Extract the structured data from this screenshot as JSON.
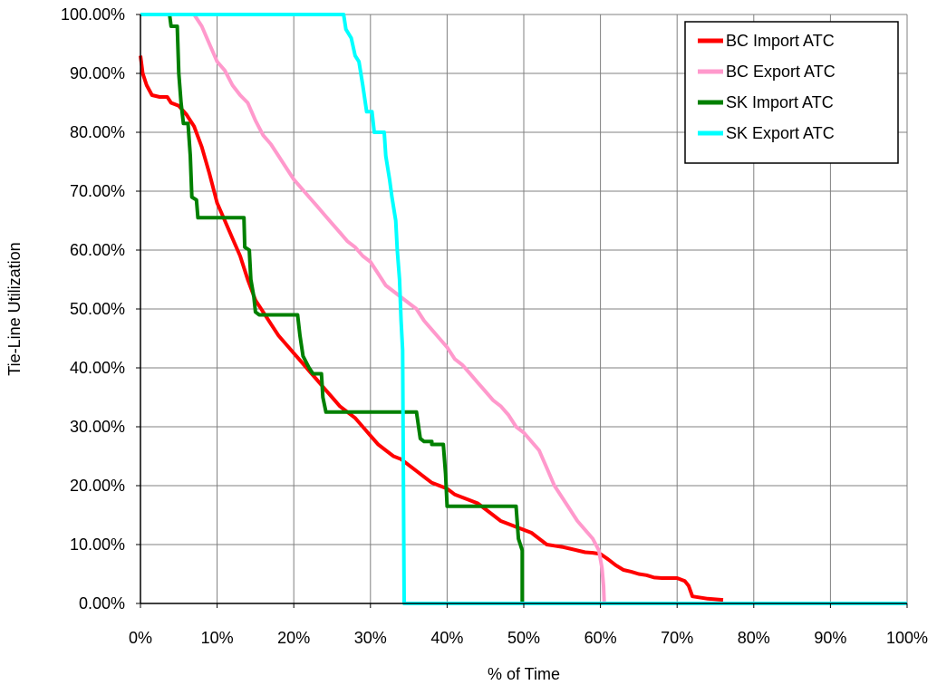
{
  "chart_data": {
    "type": "line",
    "xlabel": "% of Time",
    "ylabel": "Tie-Line Utilization",
    "xlim": [
      0,
      100
    ],
    "ylim": [
      0,
      100
    ],
    "grid": true,
    "legend_position": "top-right",
    "x_ticks": [
      0,
      10,
      20,
      30,
      40,
      50,
      60,
      70,
      80,
      90,
      100
    ],
    "x_tick_labels": [
      "0%",
      "10%",
      "20%",
      "30%",
      "40%",
      "50%",
      "60%",
      "70%",
      "80%",
      "90%",
      "100%"
    ],
    "y_ticks": [
      0,
      10,
      20,
      30,
      40,
      50,
      60,
      70,
      80,
      90,
      100
    ],
    "y_tick_labels": [
      "0.00%",
      "10.00%",
      "20.00%",
      "30.00%",
      "40.00%",
      "50.00%",
      "60.00%",
      "70.00%",
      "80.00%",
      "90.00%",
      "100.00%"
    ],
    "series": [
      {
        "name": "BC Import ATC",
        "color": "#ff0000",
        "points": [
          [
            0,
            93
          ],
          [
            0.3,
            90
          ],
          [
            0.8,
            88
          ],
          [
            1.5,
            86.3
          ],
          [
            2.5,
            86
          ],
          [
            3.5,
            86
          ],
          [
            4,
            85
          ],
          [
            5,
            84.5
          ],
          [
            6,
            83
          ],
          [
            7,
            81
          ],
          [
            8,
            77.5
          ],
          [
            9,
            73
          ],
          [
            10,
            68
          ],
          [
            11,
            65
          ],
          [
            12,
            62
          ],
          [
            13,
            59
          ],
          [
            14,
            55
          ],
          [
            15,
            51.5
          ],
          [
            16,
            49.5
          ],
          [
            17,
            47.5
          ],
          [
            18,
            45.5
          ],
          [
            19,
            44
          ],
          [
            20,
            42.5
          ],
          [
            21,
            41
          ],
          [
            22,
            39.5
          ],
          [
            23,
            38
          ],
          [
            24,
            36.5
          ],
          [
            25,
            35
          ],
          [
            26,
            33.5
          ],
          [
            27,
            32.5
          ],
          [
            28,
            31.5
          ],
          [
            29,
            30
          ],
          [
            30,
            28.5
          ],
          [
            31,
            27
          ],
          [
            32,
            26
          ],
          [
            33,
            25
          ],
          [
            34,
            24.5
          ],
          [
            35,
            23.5
          ],
          [
            36,
            22.5
          ],
          [
            37,
            21.5
          ],
          [
            38,
            20.5
          ],
          [
            39,
            20
          ],
          [
            40,
            19.5
          ],
          [
            41,
            18.5
          ],
          [
            42,
            18
          ],
          [
            43,
            17.5
          ],
          [
            44,
            17
          ],
          [
            45,
            16
          ],
          [
            46,
            15
          ],
          [
            47,
            14
          ],
          [
            48,
            13.5
          ],
          [
            49,
            13
          ],
          [
            50,
            12.5
          ],
          [
            51,
            12
          ],
          [
            52,
            11
          ],
          [
            53,
            10
          ],
          [
            54,
            9.8
          ],
          [
            55,
            9.6
          ],
          [
            56,
            9.3
          ],
          [
            57,
            9
          ],
          [
            58,
            8.7
          ],
          [
            59,
            8.6
          ],
          [
            60,
            8.4
          ],
          [
            61,
            7.5
          ],
          [
            62,
            6.5
          ],
          [
            63,
            5.7
          ],
          [
            64,
            5.4
          ],
          [
            65,
            5
          ],
          [
            66,
            4.8
          ],
          [
            67,
            4.4
          ],
          [
            68,
            4.3
          ],
          [
            70,
            4.3
          ],
          [
            71,
            3.8
          ],
          [
            71.5,
            3
          ],
          [
            72,
            1.2
          ],
          [
            74,
            0.8
          ],
          [
            76,
            0.6
          ]
        ]
      },
      {
        "name": "BC Export ATC",
        "color": "#ff99cc",
        "points": [
          [
            0,
            100
          ],
          [
            7,
            100
          ],
          [
            8,
            98
          ],
          [
            9,
            95
          ],
          [
            10,
            92
          ],
          [
            11,
            90.5
          ],
          [
            12,
            88
          ],
          [
            13,
            86.3
          ],
          [
            14,
            85
          ],
          [
            15,
            82
          ],
          [
            16,
            79.5
          ],
          [
            17,
            78
          ],
          [
            18,
            76
          ],
          [
            19,
            74
          ],
          [
            20,
            72
          ],
          [
            21,
            70.5
          ],
          [
            22,
            69
          ],
          [
            23,
            67.5
          ],
          [
            24,
            66
          ],
          [
            25,
            64.5
          ],
          [
            26,
            63
          ],
          [
            27,
            61.5
          ],
          [
            28,
            60.5
          ],
          [
            29,
            59
          ],
          [
            30,
            58
          ],
          [
            31,
            56
          ],
          [
            32,
            54
          ],
          [
            33,
            53
          ],
          [
            34,
            52
          ],
          [
            35,
            51
          ],
          [
            36,
            50
          ],
          [
            37,
            48
          ],
          [
            38,
            46.5
          ],
          [
            39,
            45
          ],
          [
            40,
            43.5
          ],
          [
            41,
            41.5
          ],
          [
            42,
            40.5
          ],
          [
            43,
            39
          ],
          [
            44,
            37.5
          ],
          [
            45,
            36
          ],
          [
            46,
            34.5
          ],
          [
            47,
            33.5
          ],
          [
            48,
            32
          ],
          [
            49,
            30
          ],
          [
            50,
            29
          ],
          [
            51,
            27.5
          ],
          [
            52,
            26
          ],
          [
            53,
            23
          ],
          [
            54,
            20
          ],
          [
            55,
            18
          ],
          [
            56,
            16
          ],
          [
            57,
            14
          ],
          [
            58,
            12.5
          ],
          [
            59,
            11
          ],
          [
            59.8,
            9
          ],
          [
            60.2,
            6
          ],
          [
            60.4,
            3
          ],
          [
            60.5,
            0
          ]
        ]
      },
      {
        "name": "SK Import ATC",
        "color": "#008000",
        "points": [
          [
            3.8,
            100
          ],
          [
            4,
            98
          ],
          [
            4.8,
            98
          ],
          [
            5,
            90
          ],
          [
            5.3,
            85
          ],
          [
            5.6,
            81.5
          ],
          [
            6.2,
            81.5
          ],
          [
            6.5,
            76
          ],
          [
            6.7,
            69
          ],
          [
            7.3,
            68.5
          ],
          [
            7.5,
            65.5
          ],
          [
            13.5,
            65.5
          ],
          [
            13.6,
            60.5
          ],
          [
            14.2,
            60
          ],
          [
            14.4,
            55
          ],
          [
            14.8,
            52
          ],
          [
            15,
            49.5
          ],
          [
            15.5,
            49
          ],
          [
            20.5,
            49
          ],
          [
            20.8,
            45.5
          ],
          [
            21.2,
            42
          ],
          [
            22,
            40
          ],
          [
            22.5,
            39
          ],
          [
            23.6,
            39
          ],
          [
            23.8,
            35
          ],
          [
            24.2,
            32.5
          ],
          [
            36,
            32.5
          ],
          [
            36.5,
            28
          ],
          [
            37,
            27.5
          ],
          [
            38,
            27.5
          ],
          [
            38,
            27
          ],
          [
            39.5,
            27
          ],
          [
            39.8,
            22
          ],
          [
            40,
            16.5
          ],
          [
            49,
            16.5
          ],
          [
            49.3,
            11
          ],
          [
            49.8,
            9
          ],
          [
            49.8,
            0
          ]
        ]
      },
      {
        "name": "SK Export ATC",
        "color": "#00ffff",
        "points": [
          [
            0,
            100
          ],
          [
            26.5,
            100
          ],
          [
            26.8,
            97.5
          ],
          [
            27.5,
            96
          ],
          [
            28,
            93
          ],
          [
            28.5,
            92
          ],
          [
            29,
            88
          ],
          [
            29.5,
            83.5
          ],
          [
            30.2,
            83.5
          ],
          [
            30.5,
            80
          ],
          [
            31.8,
            80
          ],
          [
            32,
            76
          ],
          [
            32.5,
            72
          ],
          [
            32.8,
            69
          ],
          [
            33.3,
            65
          ],
          [
            33.5,
            60
          ],
          [
            33.8,
            55
          ],
          [
            34,
            48
          ],
          [
            34.2,
            43
          ],
          [
            34.3,
            20
          ],
          [
            34.4,
            0
          ],
          [
            100,
            0
          ]
        ]
      }
    ]
  }
}
